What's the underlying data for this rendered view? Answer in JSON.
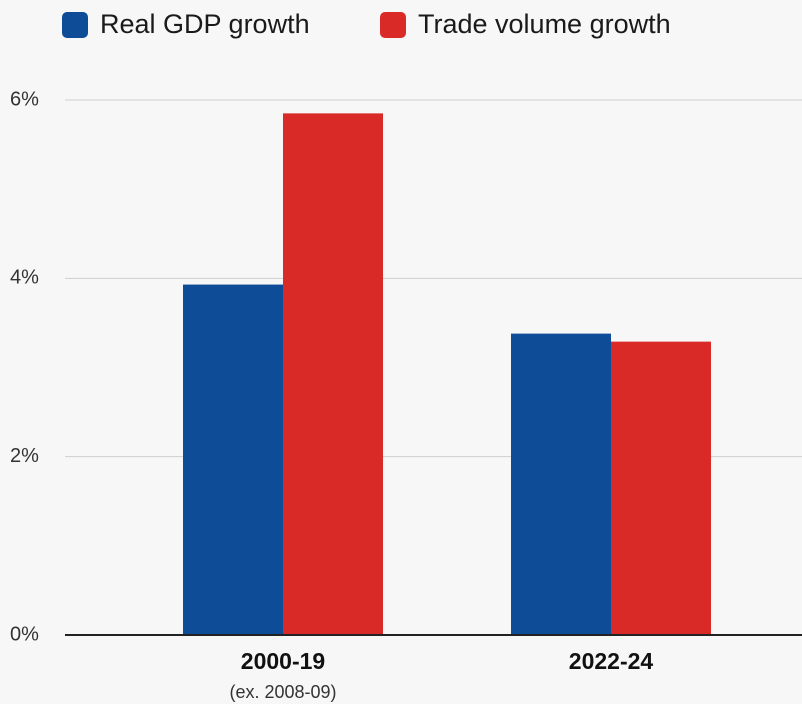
{
  "chart_data": {
    "type": "bar",
    "categories": [
      "2000-19",
      "2022-24"
    ],
    "category_sublabels": [
      "(ex. 2008-09)",
      ""
    ],
    "series": [
      {
        "name": "Real GDP growth",
        "color": "#0f4c97",
        "values": [
          3.93,
          3.38
        ]
      },
      {
        "name": "Trade volume growth",
        "color": "#d92a28",
        "values": [
          5.85,
          3.29
        ]
      }
    ],
    "ylim": [
      0,
      6
    ],
    "yticks": [
      0,
      2,
      4,
      6
    ],
    "ytick_labels": [
      "0%",
      "2%",
      "4%",
      "6%"
    ],
    "grid": true,
    "legend_position": "top-left",
    "title": "",
    "xlabel": "",
    "ylabel": ""
  }
}
